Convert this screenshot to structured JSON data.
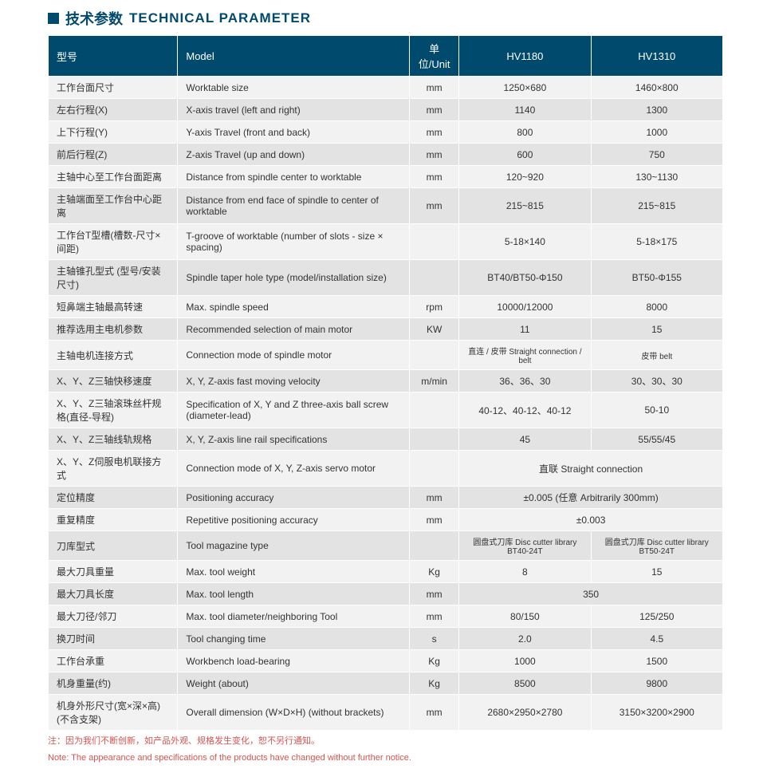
{
  "title_cn": "技术参数",
  "title_en": "TECHNICAL PARAMETER",
  "headers": {
    "c1": "型号",
    "c2": "Model",
    "c3": "单位/Unit",
    "c4": "HV1180",
    "c5": "HV1310"
  },
  "rows": [
    {
      "cn": "工作台面尺寸",
      "en": "Worktable size",
      "unit": "mm",
      "v1": "1250×680",
      "v2": "1460×800"
    },
    {
      "cn": "左右行程(X)",
      "en": "X-axis travel (left and right)",
      "unit": "mm",
      "v1": "1140",
      "v2": "1300"
    },
    {
      "cn": "上下行程(Y)",
      "en": "Y-axis Travel (front and back)",
      "unit": "mm",
      "v1": "800",
      "v2": "1000"
    },
    {
      "cn": "前后行程(Z)",
      "en": "Z-axis Travel (up and down)",
      "unit": "mm",
      "v1": "600",
      "v2": "750"
    },
    {
      "cn": "主轴中心至工作台面距离",
      "en": "Distance from spindle center to worktable",
      "unit": "mm",
      "v1": "120~920",
      "v2": "130~1130"
    },
    {
      "cn": "主轴端面至工作台中心距离",
      "en": "Distance from end face of spindle to center of worktable",
      "unit": "mm",
      "v1": "215~815",
      "v2": "215~815"
    },
    {
      "cn": "工作台T型槽(槽数-尺寸×间距)",
      "en": "T-groove of worktable (number of slots - size × spacing)",
      "unit": "",
      "v1": "5-18×140",
      "v2": "5-18×175"
    },
    {
      "cn": "主轴锥孔型式 (型号/安装尺寸)",
      "en": "Spindle taper hole type (model/installation size)",
      "unit": "",
      "v1": "BT40/BT50-Φ150",
      "v2": "BT50-Φ155"
    },
    {
      "cn": "短鼻端主轴最高转速",
      "en": "Max. spindle speed",
      "unit": "rpm",
      "v1": "10000/12000",
      "v2": "8000"
    },
    {
      "cn": "推荐选用主电机参数",
      "en": "Recommended selection of main motor",
      "unit": "KW",
      "v1": "11",
      "v2": "15"
    },
    {
      "cn": "主轴电机连接方式",
      "en": "Connection mode of spindle motor",
      "unit": "",
      "v1": "直连 / 皮带  Straight connection / belt",
      "v2": "皮带  belt",
      "small": true
    },
    {
      "cn": "X、Y、Z三轴快移速度",
      "en": "X, Y, Z-axis fast moving velocity",
      "unit": "m/min",
      "v1": "36、36、30",
      "v2": "30、30、30"
    },
    {
      "cn": "X、Y、Z三轴滚珠丝杆规格(直径-导程)",
      "en": "Specification of X, Y and Z three-axis ball screw (diameter-lead)",
      "unit": "",
      "v1": "40-12、40-12、40-12",
      "v2": "50-10"
    },
    {
      "cn": "X、Y、Z三轴线轨规格",
      "en": "X, Y, Z-axis line rail specifications",
      "unit": "",
      "v1": "45",
      "v2": "55/55/45"
    },
    {
      "cn": "X、Y、Z伺服电机联接方式",
      "en": "Connection mode of X, Y, Z-axis servo motor",
      "unit": "",
      "span": "直联   Straight connection"
    },
    {
      "cn": "定位精度",
      "en": "Positioning accuracy",
      "unit": "mm",
      "span": "±0.005 (任意 Arbitrarily 300mm)"
    },
    {
      "cn": "重复精度",
      "en": "Repetitive positioning accuracy",
      "unit": "mm",
      "span": "±0.003"
    },
    {
      "cn": "刀库型式",
      "en": "Tool magazine type",
      "unit": "",
      "v1": "圆盘式刀库 Disc cutter library  BT40-24T",
      "v2": "圆盘式刀库 Disc cutter library  BT50-24T",
      "small": true
    },
    {
      "cn": "最大刀具重量",
      "en": "Max. tool weight",
      "unit": "Kg",
      "v1": "8",
      "v2": "15"
    },
    {
      "cn": "最大刀具长度",
      "en": "Max. tool length",
      "unit": "mm",
      "span": "350"
    },
    {
      "cn": "最大刀径/邻刀",
      "en": "Max. tool diameter/neighboring Tool",
      "unit": "mm",
      "v1": "80/150",
      "v2": "125/250"
    },
    {
      "cn": "换刀时间",
      "en": "Tool changing time",
      "unit": "s",
      "v1": "2.0",
      "v2": "4.5"
    },
    {
      "cn": "工作台承重",
      "en": "Workbench load-bearing",
      "unit": "Kg",
      "v1": "1000",
      "v2": "1500"
    },
    {
      "cn": "机身重量(约)",
      "en": "Weight (about)",
      "unit": "Kg",
      "v1": "8500",
      "v2": "9800"
    },
    {
      "cn": "机身外形尺寸(宽×深×高)(不含支架)",
      "en": "Overall dimension (W×D×H) (without brackets)",
      "unit": "mm",
      "v1": "2680×2950×2780",
      "v2": "3150×3200×2900"
    }
  ],
  "note_cn": "注：因为我们不断创新，如产品外观、规格发生变化，恕不另行通知。",
  "note_en": "Note: The appearance and specifications of the products have changed without further notice."
}
